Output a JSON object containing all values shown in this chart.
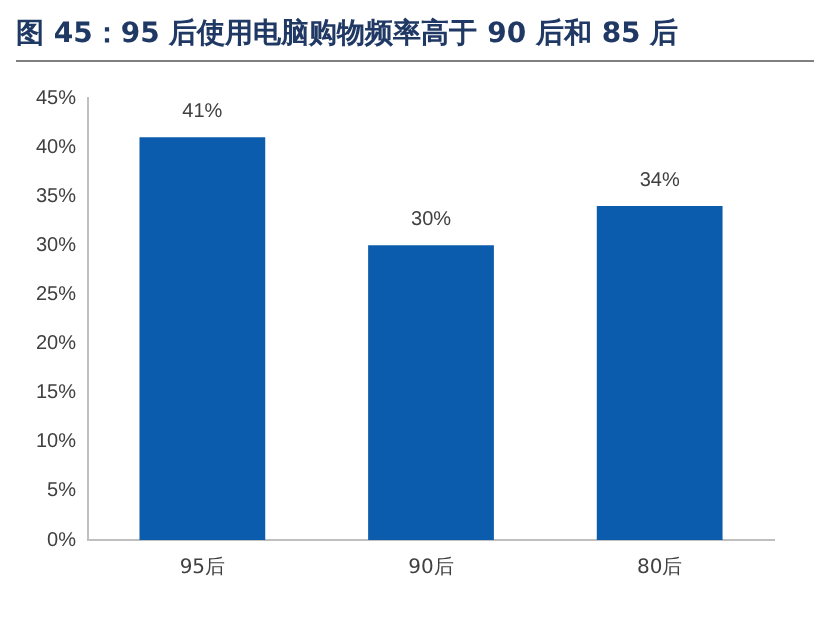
{
  "chart_data": {
    "type": "bar",
    "title": "图 45：95 后使用电脑购物频率高于 90 后和 85 后",
    "categories": [
      "95后",
      "90后",
      "80后"
    ],
    "values": [
      41,
      30,
      34
    ],
    "value_labels": [
      "41%",
      "30%",
      "34%"
    ],
    "color": "#0b5cad",
    "ylim": [
      0,
      45
    ],
    "yticks": [
      {
        "value": 0,
        "label": "0%"
      },
      {
        "value": 5,
        "label": "5%"
      },
      {
        "value": 10,
        "label": "10%"
      },
      {
        "value": 15,
        "label": "15%"
      },
      {
        "value": 20,
        "label": "20%"
      },
      {
        "value": 25,
        "label": "25%"
      },
      {
        "value": 30,
        "label": "30%"
      },
      {
        "value": 35,
        "label": "35%"
      },
      {
        "value": 40,
        "label": "40%"
      },
      {
        "value": 45,
        "label": "45%"
      }
    ],
    "grid": false,
    "legend": false
  }
}
